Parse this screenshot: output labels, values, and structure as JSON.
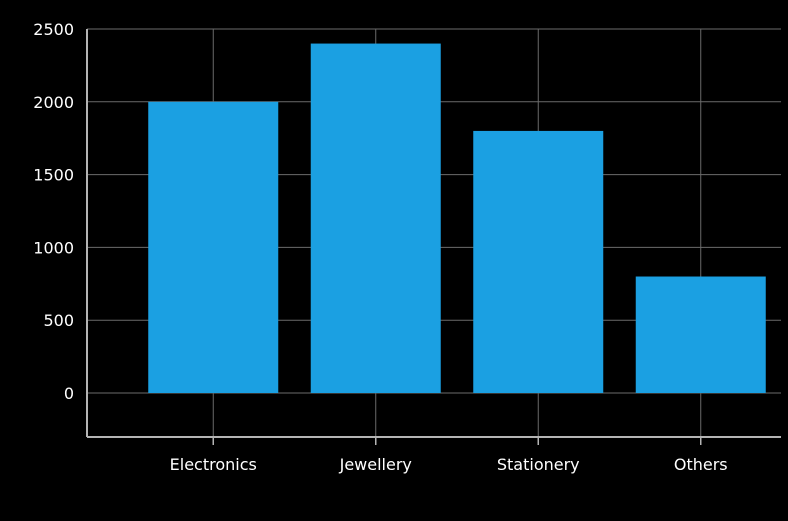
{
  "chart_data": {
    "type": "bar",
    "categories": [
      "Electronics",
      "Jewellery",
      "Stationery",
      "Others"
    ],
    "values": [
      2000,
      2400,
      1800,
      800
    ],
    "ylim": [
      0,
      2500
    ],
    "yticks": [
      0,
      500,
      1000,
      1500,
      2000,
      2500
    ],
    "grid": true,
    "bar_color": "#1ba0e2",
    "background": "#000000"
  }
}
